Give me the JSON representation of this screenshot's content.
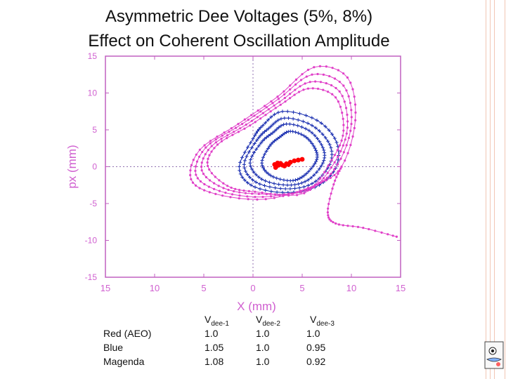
{
  "title_line1": "Asymmetric Dee Voltages (5%, 8%)",
  "title_line2": "Effect on Coherent Oscillation Amplitude",
  "colors": {
    "red": "#ff0000",
    "blue": "#1a2fb0",
    "magenta": "#e040c8",
    "frame": "#c060c0",
    "grid": "#9070b0",
    "border": "#f2c6b4"
  },
  "chart_data": {
    "type": "scatter",
    "xlabel": "X (mm)",
    "ylabel": "px (mm)",
    "xlim": [
      -15,
      15
    ],
    "ylim": [
      -15,
      15
    ],
    "x_ticks": [
      "15",
      "10",
      "5",
      "0",
      "5",
      "10",
      "15"
    ],
    "y_ticks": [
      "15",
      "10",
      "5",
      "0",
      "-5",
      "-10",
      "-15"
    ],
    "grid": "dashed axes at 0",
    "series": [
      {
        "name": "Red (AEO)",
        "color": "red",
        "points": [
          [
            2.2,
            0.3
          ],
          [
            2.6,
            0.2
          ],
          [
            3,
            0.2
          ],
          [
            3.4,
            0.4
          ],
          [
            2.4,
            0.1
          ],
          [
            2.8,
            0.45
          ],
          [
            3.2,
            0.1
          ],
          [
            2.5,
            0.5
          ],
          [
            3.6,
            0.3
          ],
          [
            2.3,
            -0.1
          ],
          [
            3.8,
            0.6
          ],
          [
            4.2,
            0.8
          ],
          [
            4.6,
            0.9
          ],
          [
            5,
            1.0
          ]
        ]
      },
      {
        "name": "Blue",
        "color": "blue",
        "orbits": [
          [
            [
              3,
              7.5
            ],
            [
              6.5,
              6.3
            ],
            [
              8.5,
              3.3
            ],
            [
              8.4,
              -0.2
            ],
            [
              6.3,
              -2.8
            ],
            [
              3,
              -3.5
            ],
            [
              -0.2,
              -2.5
            ],
            [
              -1.4,
              0
            ],
            [
              0,
              3.8
            ],
            [
              1,
              5.6
            ]
          ],
          [
            [
              3.2,
              6.6
            ],
            [
              6,
              5.6
            ],
            [
              7.8,
              3.0
            ],
            [
              7.8,
              0.3
            ],
            [
              6.0,
              -2.3
            ],
            [
              3.3,
              -3.0
            ],
            [
              0.3,
              -2.1
            ],
            [
              -0.9,
              0.3
            ],
            [
              0.4,
              3.6
            ],
            [
              1.6,
              5.2
            ]
          ],
          [
            [
              3.4,
              5.8
            ],
            [
              5.7,
              4.9
            ],
            [
              7.1,
              2.6
            ],
            [
              7.1,
              0.5
            ],
            [
              5.6,
              -1.8
            ],
            [
              3.5,
              -2.5
            ],
            [
              0.9,
              -1.7
            ],
            [
              -0.3,
              0.5
            ],
            [
              0.8,
              3.2
            ],
            [
              2.0,
              4.6
            ]
          ],
          [
            [
              3.8,
              4.8
            ],
            [
              5.4,
              4.0
            ],
            [
              6.4,
              2.2
            ],
            [
              6.4,
              0.7
            ],
            [
              5.2,
              -1.2
            ],
            [
              3.8,
              -1.9
            ],
            [
              1.8,
              -1.2
            ],
            [
              0.9,
              0.5
            ],
            [
              1.7,
              2.8
            ],
            [
              2.7,
              4.0
            ]
          ]
        ]
      },
      {
        "name": "Magenta",
        "color": "magenta",
        "orbits": [
          [
            [
              6.2,
              13.5
            ],
            [
              9.6,
              12.1
            ],
            [
              10.4,
              6.3
            ],
            [
              9,
              0
            ],
            [
              6.3,
              -2.5
            ],
            [
              1.3,
              -4.4
            ],
            [
              -3.8,
              -3.7
            ],
            [
              -6.3,
              -1.7
            ],
            [
              -5.4,
              2.3
            ],
            [
              -1.5,
              5.8
            ],
            [
              2.5,
              9.5
            ]
          ],
          [
            [
              6.0,
              12.5
            ],
            [
              9.2,
              11.0
            ],
            [
              10.0,
              5.8
            ],
            [
              8.6,
              0.3
            ],
            [
              6.0,
              -2.8
            ],
            [
              1.0,
              -4.1
            ],
            [
              -3.4,
              -3.3
            ],
            [
              -5.8,
              -1.1
            ],
            [
              -4.8,
              2.6
            ],
            [
              -1.1,
              5.8
            ],
            [
              2.6,
              9.2
            ]
          ],
          [
            [
              5.8,
              11.5
            ],
            [
              8.8,
              10.2
            ],
            [
              9.6,
              5.3
            ],
            [
              8.3,
              0.6
            ],
            [
              5.6,
              -3.2
            ],
            [
              0.6,
              -3.7
            ],
            [
              -3.0,
              -2.9
            ],
            [
              -5.2,
              -0.5
            ],
            [
              -4.2,
              2.8
            ],
            [
              -0.7,
              5.7
            ],
            [
              2.7,
              8.8
            ]
          ],
          [
            [
              5.6,
              10.6
            ],
            [
              8.4,
              9.4
            ],
            [
              9.2,
              4.9
            ],
            [
              8.0,
              0.9
            ],
            [
              5.2,
              -3.6
            ],
            [
              0.2,
              -3.4
            ],
            [
              -2.6,
              -2.6
            ],
            [
              -4.6,
              0.1
            ],
            [
              -3.6,
              3.0
            ],
            [
              -0.3,
              5.6
            ],
            [
              2.8,
              8.4
            ]
          ]
        ],
        "tail": [
          [
            9,
            0
          ],
          [
            8.2,
            -2.4
          ],
          [
            7.6,
            -6.2
          ],
          [
            8.4,
            -7.7
          ],
          [
            11.2,
            -8.3
          ],
          [
            14.6,
            -9.5
          ]
        ]
      }
    ]
  },
  "table": {
    "row_labels": [
      "Red (AEO)",
      "Blue",
      "Magenda"
    ],
    "columns": [
      {
        "header": "V",
        "sub": "dee-1",
        "values": [
          "1.0",
          "1.05",
          "1.08"
        ]
      },
      {
        "header": "V",
        "sub": "dee-2",
        "values": [
          "1.0",
          "1.0",
          "1.0"
        ]
      },
      {
        "header": "V",
        "sub": "dee-3",
        "values": [
          "1.0",
          "0.95",
          "0.92"
        ]
      }
    ]
  }
}
